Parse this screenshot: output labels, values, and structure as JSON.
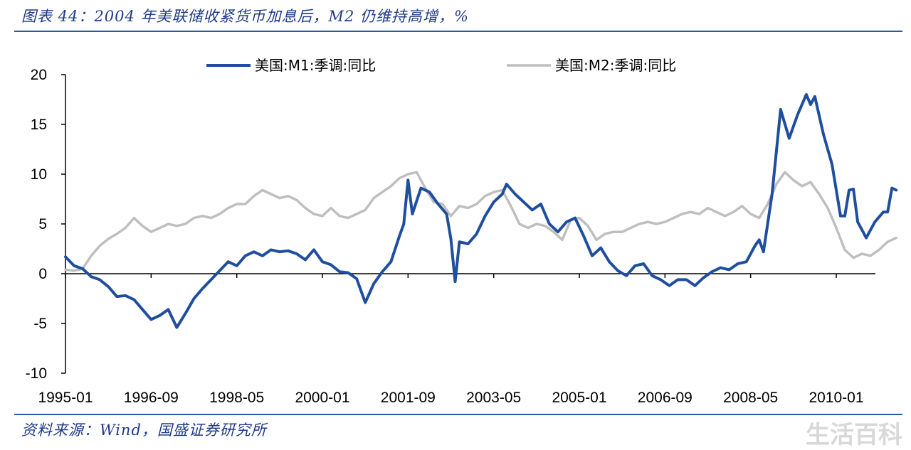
{
  "title": "图表 44：2004 年美联储收紧货币加息后，M2 仍维持高增，%",
  "source": "资料来源：Wind，国盛证券研究所",
  "watermark": "生活百科",
  "colors": {
    "m1": "#1f4e9e",
    "m2": "#bfbfbf",
    "rule": "#2d5aa6"
  },
  "chart_data": {
    "type": "line",
    "ylim": [
      -10,
      20
    ],
    "yticks": [
      "20",
      "15",
      "10",
      "5",
      "0",
      "-5",
      "-10"
    ],
    "xticks": [
      "1995-01",
      "1996-09",
      "1998-05",
      "2000-01",
      "2001-09",
      "2003-05",
      "2005-01",
      "2006-09",
      "2008-05",
      "2010-01"
    ],
    "xrange": [
      "1995-01",
      "2010-10"
    ],
    "series": [
      {
        "name": "美国:M1:季调:同比",
        "points": [
          [
            "1995-01",
            1.7
          ],
          [
            "1995-03",
            0.8
          ],
          [
            "1995-05",
            0.5
          ],
          [
            "1995-07",
            -0.3
          ],
          [
            "1995-09",
            -0.6
          ],
          [
            "1995-11",
            -1.3
          ],
          [
            "1996-01",
            -2.3
          ],
          [
            "1996-03",
            -2.2
          ],
          [
            "1996-05",
            -2.6
          ],
          [
            "1996-07",
            -3.6
          ],
          [
            "1996-09",
            -4.6
          ],
          [
            "1996-11",
            -4.2
          ],
          [
            "1997-01",
            -3.6
          ],
          [
            "1997-03",
            -5.4
          ],
          [
            "1997-05",
            -4.0
          ],
          [
            "1997-07",
            -2.5
          ],
          [
            "1997-09",
            -1.5
          ],
          [
            "1997-11",
            -0.6
          ],
          [
            "1998-01",
            0.3
          ],
          [
            "1998-03",
            1.2
          ],
          [
            "1998-05",
            0.8
          ],
          [
            "1998-07",
            1.8
          ],
          [
            "1998-09",
            2.2
          ],
          [
            "1998-11",
            1.8
          ],
          [
            "1999-01",
            2.4
          ],
          [
            "1999-03",
            2.2
          ],
          [
            "1999-05",
            2.3
          ],
          [
            "1999-07",
            2.0
          ],
          [
            "1999-09",
            1.4
          ],
          [
            "1999-11",
            2.4
          ],
          [
            "2000-01",
            1.2
          ],
          [
            "2000-03",
            0.9
          ],
          [
            "2000-05",
            0.2
          ],
          [
            "2000-07",
            0.1
          ],
          [
            "2000-09",
            -0.5
          ],
          [
            "2000-11",
            -2.9
          ],
          [
            "2001-01",
            -1.0
          ],
          [
            "2001-03",
            0.2
          ],
          [
            "2001-05",
            1.2
          ],
          [
            "2001-07",
            3.8
          ],
          [
            "2001-08",
            5.0
          ],
          [
            "2001-09",
            9.4
          ],
          [
            "2001-10",
            6.0
          ],
          [
            "2001-12",
            8.6
          ],
          [
            "2002-02",
            8.2
          ],
          [
            "2002-04",
            7.0
          ],
          [
            "2002-06",
            6.0
          ],
          [
            "2002-07",
            3.5
          ],
          [
            "2002-08",
            -0.8
          ],
          [
            "2002-09",
            3.2
          ],
          [
            "2002-11",
            3.0
          ],
          [
            "2003-01",
            4.0
          ],
          [
            "2003-03",
            5.8
          ],
          [
            "2003-05",
            7.2
          ],
          [
            "2003-07",
            8.0
          ],
          [
            "2003-08",
            9.0
          ],
          [
            "2003-10",
            8.0
          ],
          [
            "2003-12",
            7.2
          ],
          [
            "2004-02",
            6.4
          ],
          [
            "2004-04",
            7.0
          ],
          [
            "2004-06",
            5.0
          ],
          [
            "2004-08",
            4.2
          ],
          [
            "2004-10",
            5.2
          ],
          [
            "2004-12",
            5.6
          ],
          [
            "2005-02",
            3.8
          ],
          [
            "2005-04",
            1.8
          ],
          [
            "2005-06",
            2.6
          ],
          [
            "2005-08",
            1.2
          ],
          [
            "2005-10",
            0.3
          ],
          [
            "2005-12",
            -0.2
          ],
          [
            "2006-02",
            0.8
          ],
          [
            "2006-04",
            1.0
          ],
          [
            "2006-06",
            -0.2
          ],
          [
            "2006-08",
            -0.6
          ],
          [
            "2006-10",
            -1.2
          ],
          [
            "2006-12",
            -0.6
          ],
          [
            "2007-02",
            -0.6
          ],
          [
            "2007-04",
            -1.2
          ],
          [
            "2007-06",
            -0.4
          ],
          [
            "2007-08",
            0.2
          ],
          [
            "2007-10",
            0.6
          ],
          [
            "2007-12",
            0.4
          ],
          [
            "2008-02",
            1.0
          ],
          [
            "2008-04",
            1.2
          ],
          [
            "2008-06",
            2.8
          ],
          [
            "2008-07",
            3.4
          ],
          [
            "2008-08",
            2.2
          ],
          [
            "2008-10",
            8.0
          ],
          [
            "2008-12",
            16.5
          ],
          [
            "2009-02",
            13.6
          ],
          [
            "2009-04",
            16.0
          ],
          [
            "2009-06",
            18.0
          ],
          [
            "2009-07",
            17.0
          ],
          [
            "2009-08",
            17.8
          ],
          [
            "2009-10",
            14.0
          ],
          [
            "2009-12",
            11.0
          ],
          [
            "2010-02",
            5.8
          ],
          [
            "2010-03",
            5.8
          ],
          [
            "2010-04",
            8.4
          ],
          [
            "2010-05",
            8.5
          ],
          [
            "2010-06",
            5.2
          ],
          [
            "2010-08",
            3.6
          ],
          [
            "2010-10",
            5.2
          ],
          [
            "2010-12",
            6.2
          ],
          [
            "2011-01",
            6.2
          ],
          [
            "2011-02",
            8.6
          ],
          [
            "2011-03",
            8.4
          ]
        ]
      },
      {
        "name": "美国:M2:季调:同比",
        "points": [
          [
            "1995-01",
            0.4
          ],
          [
            "1995-03",
            0.3
          ],
          [
            "1995-05",
            0.5
          ],
          [
            "1995-07",
            1.8
          ],
          [
            "1995-09",
            2.8
          ],
          [
            "1995-11",
            3.5
          ],
          [
            "1996-01",
            4.0
          ],
          [
            "1996-03",
            4.6
          ],
          [
            "1996-05",
            5.6
          ],
          [
            "1996-07",
            4.8
          ],
          [
            "1996-09",
            4.2
          ],
          [
            "1996-11",
            4.6
          ],
          [
            "1997-01",
            5.0
          ],
          [
            "1997-03",
            4.8
          ],
          [
            "1997-05",
            5.0
          ],
          [
            "1997-07",
            5.6
          ],
          [
            "1997-09",
            5.8
          ],
          [
            "1997-11",
            5.6
          ],
          [
            "1998-01",
            6.0
          ],
          [
            "1998-03",
            6.6
          ],
          [
            "1998-05",
            7.0
          ],
          [
            "1998-07",
            7.0
          ],
          [
            "1998-09",
            7.8
          ],
          [
            "1998-11",
            8.4
          ],
          [
            "1999-01",
            8.0
          ],
          [
            "1999-03",
            7.6
          ],
          [
            "1999-05",
            7.8
          ],
          [
            "1999-07",
            7.4
          ],
          [
            "1999-09",
            6.6
          ],
          [
            "1999-11",
            6.0
          ],
          [
            "2000-01",
            5.8
          ],
          [
            "2000-03",
            6.6
          ],
          [
            "2000-05",
            5.8
          ],
          [
            "2000-07",
            5.6
          ],
          [
            "2000-09",
            6.0
          ],
          [
            "2000-11",
            6.4
          ],
          [
            "2001-01",
            7.6
          ],
          [
            "2001-03",
            8.2
          ],
          [
            "2001-05",
            8.8
          ],
          [
            "2001-07",
            9.6
          ],
          [
            "2001-09",
            10.0
          ],
          [
            "2001-11",
            10.2
          ],
          [
            "2002-01",
            8.6
          ],
          [
            "2002-03",
            7.2
          ],
          [
            "2002-05",
            7.0
          ],
          [
            "2002-07",
            5.8
          ],
          [
            "2002-09",
            6.8
          ],
          [
            "2002-11",
            6.6
          ],
          [
            "2003-01",
            7.0
          ],
          [
            "2003-03",
            7.8
          ],
          [
            "2003-05",
            8.2
          ],
          [
            "2003-07",
            8.4
          ],
          [
            "2003-09",
            6.8
          ],
          [
            "2003-11",
            5.0
          ],
          [
            "2004-01",
            4.6
          ],
          [
            "2004-03",
            5.0
          ],
          [
            "2004-05",
            4.8
          ],
          [
            "2004-07",
            4.2
          ],
          [
            "2004-09",
            3.4
          ],
          [
            "2004-11",
            5.4
          ],
          [
            "2005-01",
            5.6
          ],
          [
            "2005-03",
            4.8
          ],
          [
            "2005-05",
            3.4
          ],
          [
            "2005-07",
            4.0
          ],
          [
            "2005-09",
            4.2
          ],
          [
            "2005-11",
            4.2
          ],
          [
            "2006-01",
            4.6
          ],
          [
            "2006-03",
            5.0
          ],
          [
            "2006-05",
            5.2
          ],
          [
            "2006-07",
            5.0
          ],
          [
            "2006-09",
            5.2
          ],
          [
            "2006-11",
            5.6
          ],
          [
            "2007-01",
            6.0
          ],
          [
            "2007-03",
            6.2
          ],
          [
            "2007-05",
            6.0
          ],
          [
            "2007-07",
            6.6
          ],
          [
            "2007-09",
            6.2
          ],
          [
            "2007-11",
            5.8
          ],
          [
            "2008-01",
            6.2
          ],
          [
            "2008-03",
            6.8
          ],
          [
            "2008-05",
            6.0
          ],
          [
            "2008-07",
            5.6
          ],
          [
            "2008-09",
            7.0
          ],
          [
            "2008-11",
            9.0
          ],
          [
            "2009-01",
            10.2
          ],
          [
            "2009-03",
            9.4
          ],
          [
            "2009-05",
            8.8
          ],
          [
            "2009-07",
            9.2
          ],
          [
            "2009-09",
            8.0
          ],
          [
            "2009-11",
            6.6
          ],
          [
            "2010-01",
            4.6
          ],
          [
            "2010-03",
            2.4
          ],
          [
            "2010-05",
            1.6
          ],
          [
            "2010-07",
            2.0
          ],
          [
            "2010-09",
            1.8
          ],
          [
            "2010-11",
            2.4
          ],
          [
            "2011-01",
            3.2
          ],
          [
            "2011-03",
            3.6
          ]
        ]
      }
    ]
  }
}
